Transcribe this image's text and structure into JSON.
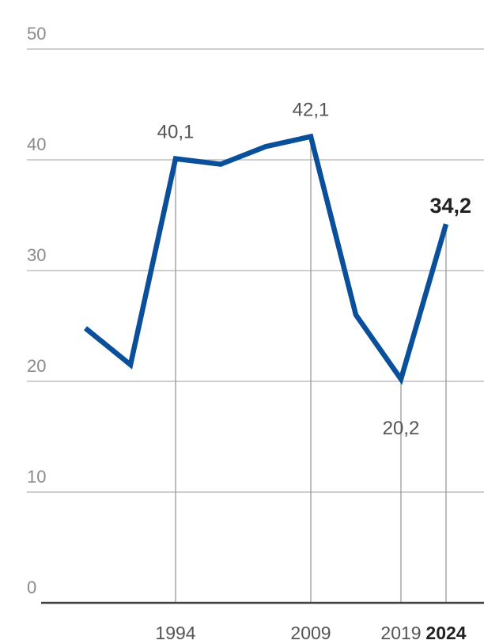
{
  "chart_data": {
    "type": "line",
    "title": "",
    "xlabel": "",
    "ylabel": "",
    "ylim": [
      0,
      50
    ],
    "yticks": [
      0,
      10,
      20,
      30,
      40,
      50
    ],
    "ytick_labels": [
      "0",
      "10",
      "20",
      "30",
      "40",
      "50"
    ],
    "xlim": [
      1984,
      2024
    ],
    "xticks": [
      1994,
      2009,
      2019,
      2024
    ],
    "xtick_labels": [
      "1994",
      "2009",
      "2019",
      "2024"
    ],
    "xtick_bold": [
      false,
      false,
      false,
      true
    ],
    "grid": true,
    "series_color": "#0a4f9a",
    "series": [
      {
        "x": [
          1984,
          1989,
          1994,
          1999,
          2004,
          2009,
          2014,
          2019,
          2024
        ],
        "values": [
          24.8,
          21.5,
          40.1,
          39.6,
          41.2,
          42.1,
          26.0,
          20.2,
          34.2
        ]
      }
    ],
    "annotations": [
      {
        "x": 1994,
        "y": 40.1,
        "text": "40,1",
        "bold": false,
        "pos": "above"
      },
      {
        "x": 2009,
        "y": 42.1,
        "text": "42,1",
        "bold": false,
        "pos": "above"
      },
      {
        "x": 2019,
        "y": 20.2,
        "text": "20,2",
        "bold": false,
        "pos": "below"
      },
      {
        "x": 2024,
        "y": 34.2,
        "text": "34,2",
        "bold": true,
        "pos": "above-left"
      }
    ],
    "guide_lines_at": [
      1994,
      2009,
      2019,
      2024
    ]
  }
}
